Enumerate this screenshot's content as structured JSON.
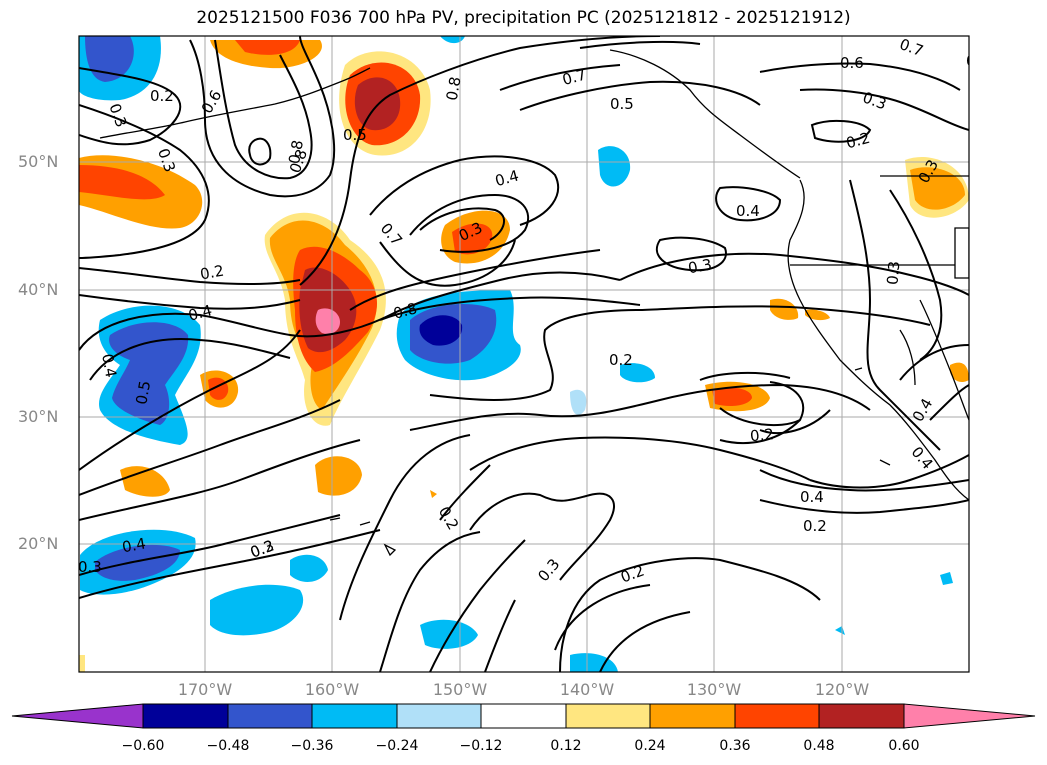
{
  "title": "2025121500 F036 700 hPa PV, precipitation PC (2025121812 - 2025121912)",
  "lat_labels": [
    "50°N",
    "40°N",
    "30°N",
    "20°N"
  ],
  "lon_labels": [
    "170°W",
    "160°W",
    "150°W",
    "140°W",
    "130°W",
    "120°W"
  ],
  "colorbar": {
    "colors": [
      "#9933cc",
      "#000099",
      "#3355cc",
      "#00bbf5",
      "#b0e0f8",
      "#ffffff",
      "#ffe680",
      "#ffa000",
      "#ff4400",
      "#b22222",
      "#ff80aa"
    ],
    "tick_labels": [
      "−0.60",
      "−0.48",
      "−0.36",
      "−0.24",
      "−0.12",
      "0.12",
      "0.24",
      "0.36",
      "0.48",
      "0.60"
    ]
  },
  "contour_labels": [
    "0.2",
    "0.3",
    "0.6",
    "0.8",
    "0.5",
    "0.8",
    "0.7",
    "0.6",
    "0.7",
    "0.3",
    "0.3",
    "0.5",
    "0.2",
    "0.8",
    "0.3",
    "0.4",
    "0.7",
    "0.4",
    "0.2",
    "0.3",
    "0.4",
    "0.3",
    "0.8",
    "0.4",
    "0.3",
    "0.4",
    "0.2",
    "0.5",
    "0.2",
    "0.2",
    "0.4",
    "0.4",
    "0.2",
    "0.3",
    "0.2",
    "0.3",
    "0.4",
    "0.3",
    "0.2",
    "0.3"
  ],
  "colors": {
    "frame": "#000000",
    "grid": "#aaaaaa",
    "contour": "#000000",
    "label": "#888888"
  }
}
